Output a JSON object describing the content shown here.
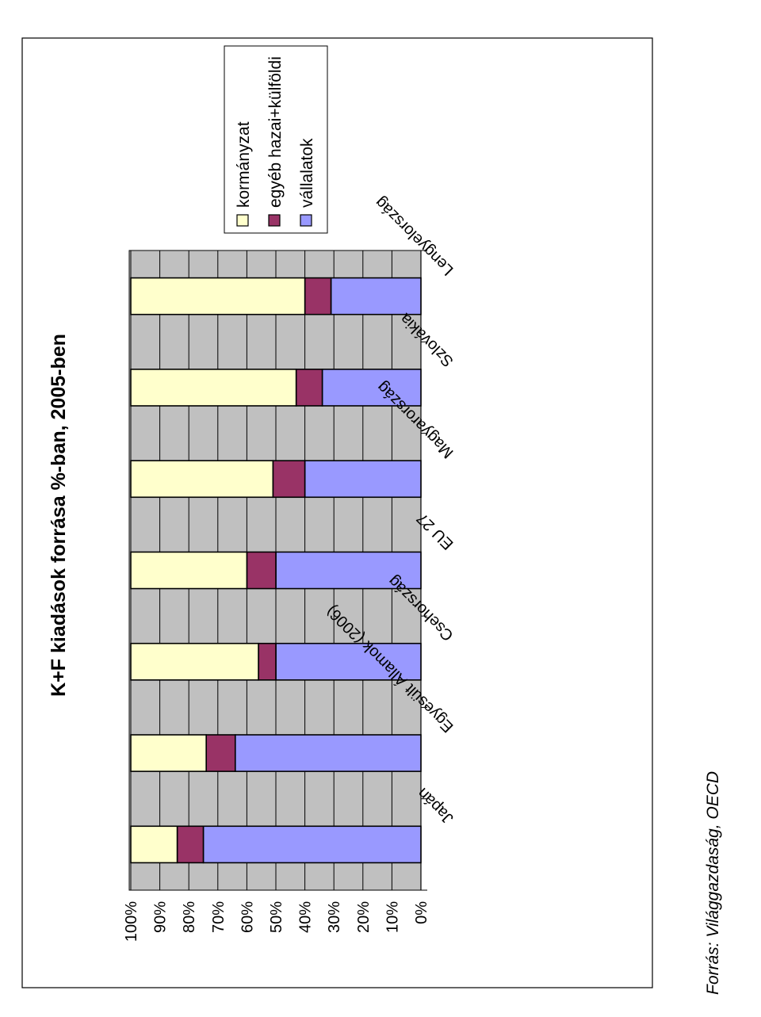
{
  "chart_data": {
    "type": "bar",
    "stacked": true,
    "percent": true,
    "orientation": "rotated",
    "title": "K+F kiadások forrása %-ban, 2005-ben",
    "categories": [
      "Japán",
      "Egyesült Államok (2006)",
      "Csehország",
      "EU 27",
      "Magyarország",
      "Szlovákia",
      "Lengyelország"
    ],
    "series": [
      {
        "name": "vállalatok",
        "color": "#9999ff",
        "values": [
          75,
          64,
          50,
          50,
          40,
          34,
          31
        ]
      },
      {
        "name": "egyéb hazai+külföldi",
        "color": "#993366",
        "values": [
          9,
          10,
          6,
          10,
          11,
          9,
          9
        ]
      },
      {
        "name": "kormányzat",
        "color": "#ffffcc",
        "values": [
          16,
          26,
          44,
          40,
          49,
          57,
          60
        ]
      }
    ],
    "yticks": [
      "0%",
      "10%",
      "20%",
      "30%",
      "40%",
      "50%",
      "60%",
      "70%",
      "80%",
      "90%",
      "100%"
    ],
    "ylim": [
      0,
      100
    ],
    "grid": true,
    "legend_position": "right",
    "legend_order": [
      "kormányzat",
      "egyéb hazai+külföldi",
      "vállalatok"
    ],
    "colors": {
      "plot_bg": "#c0c0c0"
    }
  },
  "source_text": "Forrás: Világgazdaság, OECD"
}
